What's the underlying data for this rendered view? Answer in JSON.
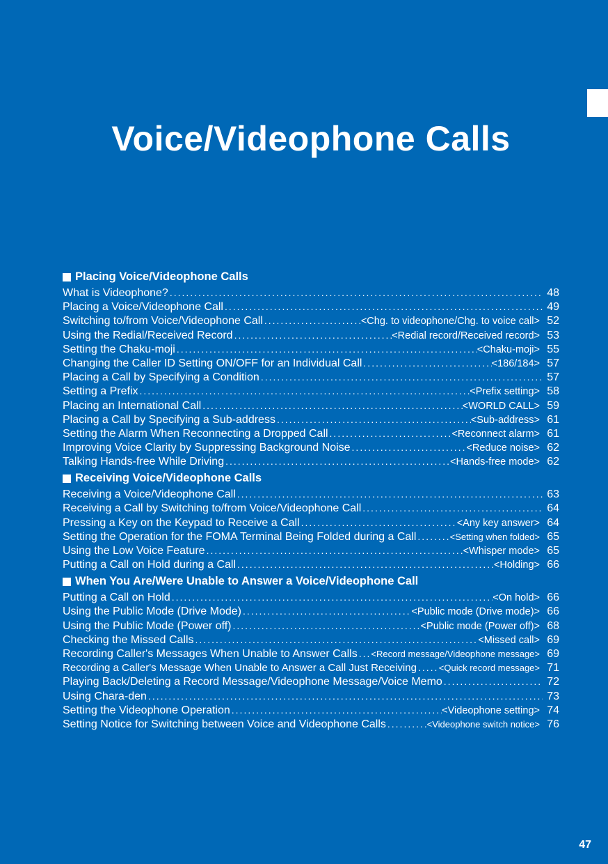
{
  "chapter_title": "Voice/Videophone Calls",
  "page_number": "47",
  "colors": {
    "background": "#0068b6",
    "text": "#ffffff",
    "tab": "#ffffff"
  },
  "sections": [
    {
      "header": "Placing Voice/Videophone Calls",
      "items": [
        {
          "title": "What is Videophone?",
          "tag": "",
          "page": "48"
        },
        {
          "title": "Placing a Voice/Videophone Call",
          "tag": "",
          "page": "49"
        },
        {
          "title": "Switching to/from Voice/Videophone Call",
          "tag": "<Chg. to videophone/Chg. to voice call>",
          "page": "52"
        },
        {
          "title": "Using the Redial/Received Record",
          "tag": "<Redial record/Received record>",
          "page": "53"
        },
        {
          "title": "Setting the Chaku-moji",
          "tag": "<Chaku-moji>",
          "page": "55"
        },
        {
          "title": "Changing the Caller ID Setting ON/OFF for an Individual Call",
          "tag": "<186/184>",
          "page": "57"
        },
        {
          "title": "Placing a Call by Specifying a Condition",
          "tag": "",
          "page": "57"
        },
        {
          "title": "Setting a Prefix",
          "tag": "<Prefix setting>",
          "page": "58"
        },
        {
          "title": "Placing an International Call",
          "tag": "<WORLD CALL>",
          "page": "59"
        },
        {
          "title": "Placing a Call by Specifying a Sub-address",
          "tag": "<Sub-address>",
          "page": "61"
        },
        {
          "title": "Setting the Alarm When Reconnecting a Dropped Call",
          "tag": "<Reconnect alarm>",
          "page": "61"
        },
        {
          "title": "Improving Voice Clarity by Suppressing Background Noise",
          "tag": "<Reduce noise>",
          "page": "62"
        },
        {
          "title": "Talking Hands-free While Driving",
          "tag": "<Hands-free mode>",
          "page": "62"
        }
      ]
    },
    {
      "header": "Receiving Voice/Videophone Calls",
      "items": [
        {
          "title": "Receiving a Voice/Videophone Call",
          "tag": "",
          "page": "63"
        },
        {
          "title": "Receiving a Call by Switching to/from Voice/Videophone Call",
          "tag": "",
          "page": "64"
        },
        {
          "title": "Pressing a Key on the Keypad to Receive a Call",
          "tag": "<Any key answer>",
          "page": "64"
        },
        {
          "title": "Setting the Operation for the FOMA Terminal Being Folded during a Call",
          "tag": "<Setting when folded>",
          "page": "65",
          "tagSmall": true
        },
        {
          "title": "Using the Low Voice Feature",
          "tag": "<Whisper mode>",
          "page": "65"
        },
        {
          "title": "Putting a Call on Hold during a Call",
          "tag": "<Holding>",
          "page": "66"
        }
      ]
    },
    {
      "header": "When You Are/Were Unable to Answer a Voice/Videophone Call",
      "items": [
        {
          "title": "Putting a Call on Hold",
          "tag": "<On hold>",
          "page": "66"
        },
        {
          "title": "Using the Public Mode (Drive Mode)",
          "tag": "<Public mode (Drive mode)>",
          "page": "66"
        },
        {
          "title": "Using the Public Mode (Power off)",
          "tag": "<Public mode (Power off)>",
          "page": "68"
        },
        {
          "title": "Checking the Missed Calls",
          "tag": "<Missed call>",
          "page": "69"
        },
        {
          "title": "Recording Caller's Messages When Unable to Answer Calls",
          "tag": "<Record message/Videophone message>",
          "page": "69",
          "tagSmall": true
        },
        {
          "title": "Recording a Caller's Message When Unable to Answer a Call Just Receiving",
          "tag": "<Quick record message>",
          "page": "71",
          "titleSmall": true,
          "tagSmall": true
        },
        {
          "title": "Playing Back/Deleting a Record Message/Videophone Message/Voice Memo",
          "tag": "",
          "page": "72"
        },
        {
          "title": "Using Chara-den",
          "tag": "",
          "page": "73"
        },
        {
          "title": "Setting the Videophone Operation",
          "tag": "<Videophone setting>",
          "page": "74"
        },
        {
          "title": "Setting Notice for Switching between Voice and Videophone Calls",
          "tag": "<Videophone switch notice>",
          "page": "76",
          "tagSmall": true
        }
      ]
    }
  ]
}
